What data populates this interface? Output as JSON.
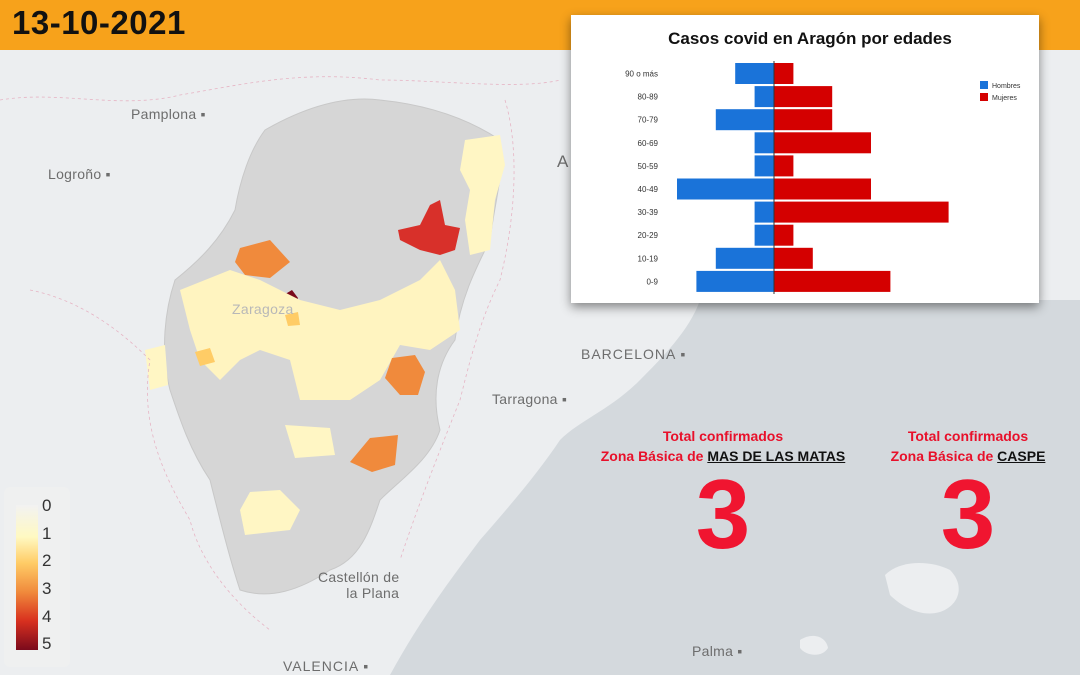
{
  "date": "13-10-2021",
  "cities": {
    "pamplona": "Pamplona",
    "logrono": "Logroño",
    "zaragoza": "Zaragoza",
    "barcelona": "BARCELONA",
    "tarragona": "Tarragona",
    "castellon_1": "Castellón de",
    "castellon_2": "la Plana",
    "valencia": "VALENCIA",
    "palma": "Palma",
    "andorra": "A"
  },
  "legend": {
    "labels": [
      "0",
      "1",
      "2",
      "3",
      "4",
      "5"
    ],
    "colors": [
      "#f2f2f2",
      "#fff6b8",
      "#ffc266",
      "#f08a3c",
      "#d8301f",
      "#7a0a1c"
    ]
  },
  "stats": [
    {
      "line1": "Total confirmados",
      "prefix": "Zona Básica de ",
      "zone": "MAS DE LAS MATAS",
      "value": "3"
    },
    {
      "line1": "Total confirmados",
      "prefix": "Zona Básica de ",
      "zone": "CASPE",
      "value": "3"
    }
  ],
  "chart_data": {
    "type": "bar",
    "orientation": "horizontal-pyramid",
    "title": "Casos covid en Aragón por edades",
    "categories": [
      "90 o más",
      "80-89",
      "70-79",
      "60-69",
      "50-59",
      "40-49",
      "30-39",
      "20-29",
      "10-19",
      "0-9"
    ],
    "series": [
      {
        "name": "Hombres",
        "color": "#1a73d9",
        "values": [
          2,
          1,
          3,
          1,
          1,
          5,
          1,
          1,
          3,
          4
        ]
      },
      {
        "name": "Mujeres",
        "color": "#d40000",
        "values": [
          1,
          3,
          3,
          5,
          1,
          5,
          9,
          1,
          2,
          6
        ]
      }
    ],
    "legend_position": "right",
    "grid": false
  }
}
